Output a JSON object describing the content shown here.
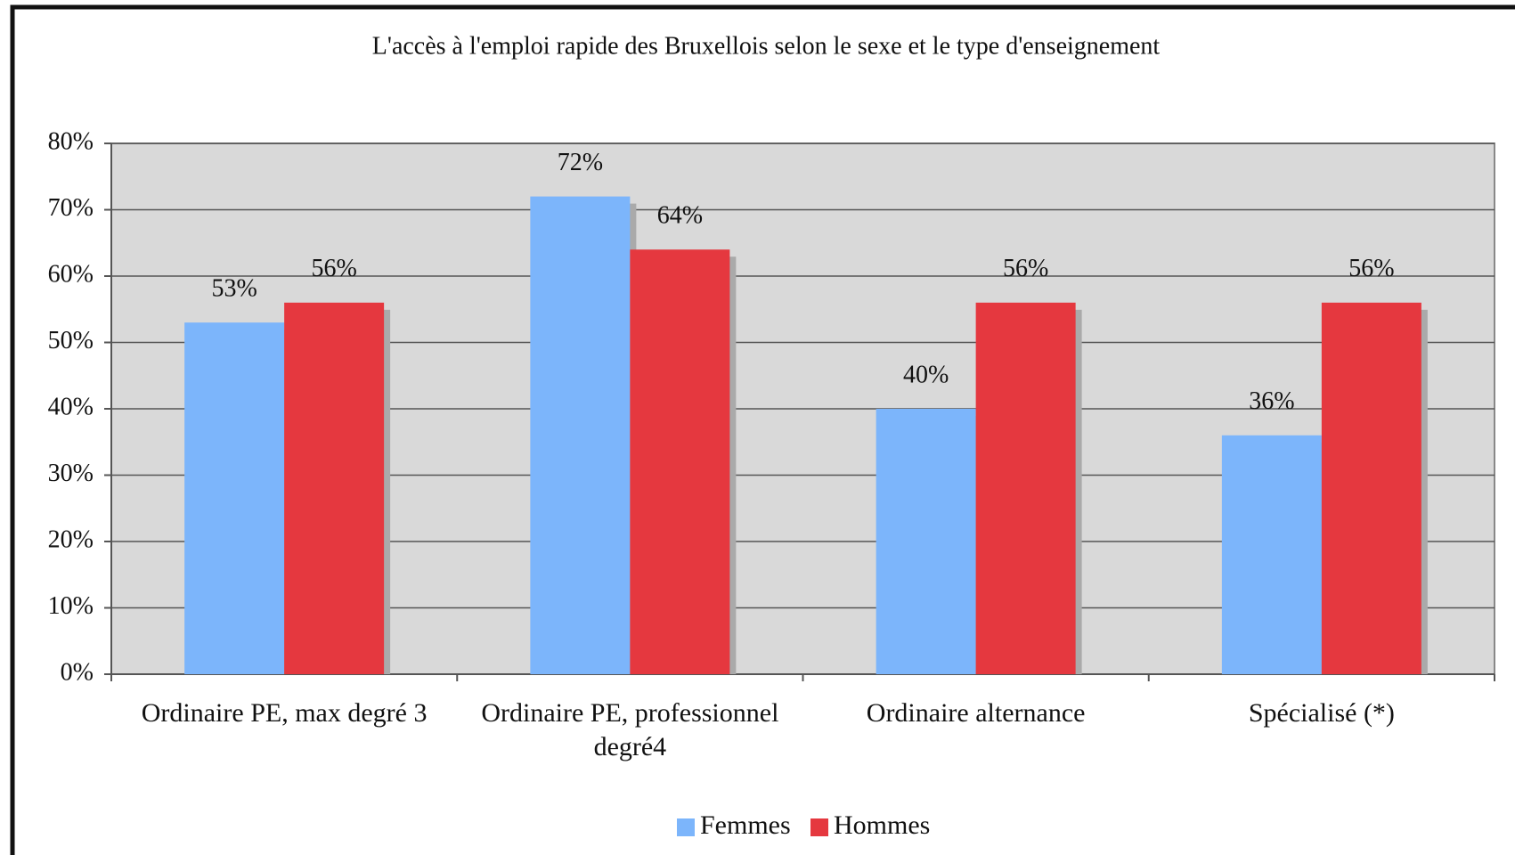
{
  "chart_data": {
    "type": "bar",
    "title": "L'accès à l'emploi rapide des Bruxellois selon le sexe et le type d'enseignement",
    "categories": [
      "Ordinaire PE, max degré 3",
      "Ordinaire PE, professionnel degré4",
      "Ordinaire alternance",
      "Spécialisé (*)"
    ],
    "series": [
      {
        "name": "Femmes",
        "color": "#7cb5fb",
        "values": [
          53,
          72,
          40,
          36
        ],
        "value_labels": [
          "53%",
          "72%",
          "40%",
          "36%"
        ]
      },
      {
        "name": "Hommes",
        "color": "#e5383f",
        "values": [
          56,
          64,
          56,
          56
        ],
        "value_labels": [
          "56%",
          "64%",
          "56%",
          "56%"
        ]
      }
    ],
    "ylim": [
      0,
      80
    ],
    "yticks": [
      {
        "value": 0,
        "label": "0%"
      },
      {
        "value": 10,
        "label": "10%"
      },
      {
        "value": 20,
        "label": "20%"
      },
      {
        "value": 30,
        "label": "30%"
      },
      {
        "value": 40,
        "label": "40%"
      },
      {
        "value": 50,
        "label": "50%"
      },
      {
        "value": 60,
        "label": "60%"
      },
      {
        "value": 70,
        "label": "70%"
      },
      {
        "value": 80,
        "label": "80%"
      }
    ],
    "grid": true,
    "legend": "bottom"
  }
}
